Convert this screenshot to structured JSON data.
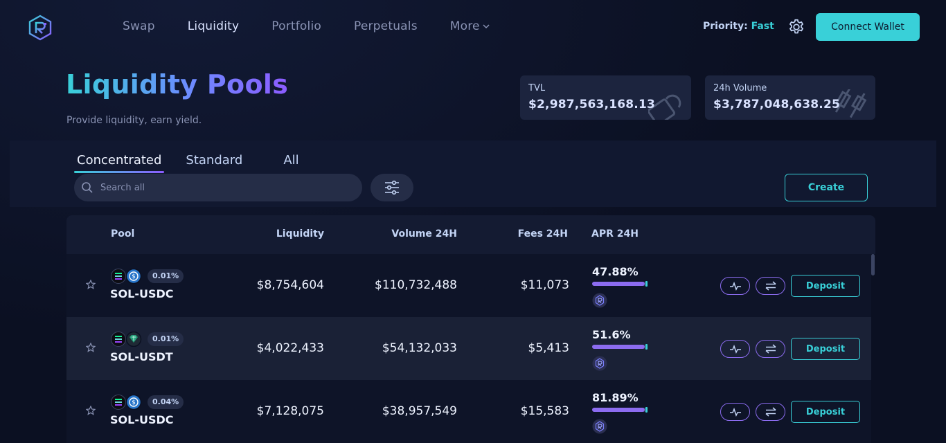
{
  "nav": {
    "items": [
      {
        "label": "Swap",
        "active": false
      },
      {
        "label": "Liquidity",
        "active": true
      },
      {
        "label": "Portfolio",
        "active": false
      },
      {
        "label": "Perpetuals",
        "active": false
      }
    ],
    "more_label": "More"
  },
  "header": {
    "priority_label": "Priority:",
    "priority_value": "Fast",
    "connect_label": "Connect Wallet"
  },
  "hero": {
    "title": "Liquidity Pools",
    "subtitle": "Provide liquidity, earn yield."
  },
  "stats": {
    "tvl": {
      "label": "TVL",
      "value": "$2,987,563,168.13"
    },
    "volume": {
      "label": "24h Volume",
      "value": "$3,787,048,638.25"
    }
  },
  "tabs": [
    "Concentrated",
    "Standard",
    "All"
  ],
  "search": {
    "placeholder": "Search all"
  },
  "create_label": "Create",
  "table": {
    "headers": {
      "pool": "Pool",
      "liquidity": "Liquidity",
      "volume": "Volume 24H",
      "fees": "Fees 24H",
      "apr": "APR 24H"
    },
    "deposit_label": "Deposit",
    "rows": [
      {
        "pair": "SOL-USDC",
        "fee_tier": "0.01%",
        "liquidity": "$8,754,604",
        "volume": "$110,732,488",
        "fees": "$11,073",
        "apr": "47.88%",
        "token_b": "usdc"
      },
      {
        "pair": "SOL-USDT",
        "fee_tier": "0.01%",
        "liquidity": "$4,022,433",
        "volume": "$54,132,033",
        "fees": "$5,413",
        "apr": "51.6%",
        "token_b": "usdt"
      },
      {
        "pair": "SOL-USDC",
        "fee_tier": "0.04%",
        "liquidity": "$7,128,075",
        "volume": "$38,957,549",
        "fees": "$15,583",
        "apr": "81.89%",
        "token_b": "usdc"
      }
    ]
  },
  "colors": {
    "accent_cyan": "#39d0d8",
    "accent_purple": "#8c6cf0",
    "bg": "#0b1022"
  }
}
